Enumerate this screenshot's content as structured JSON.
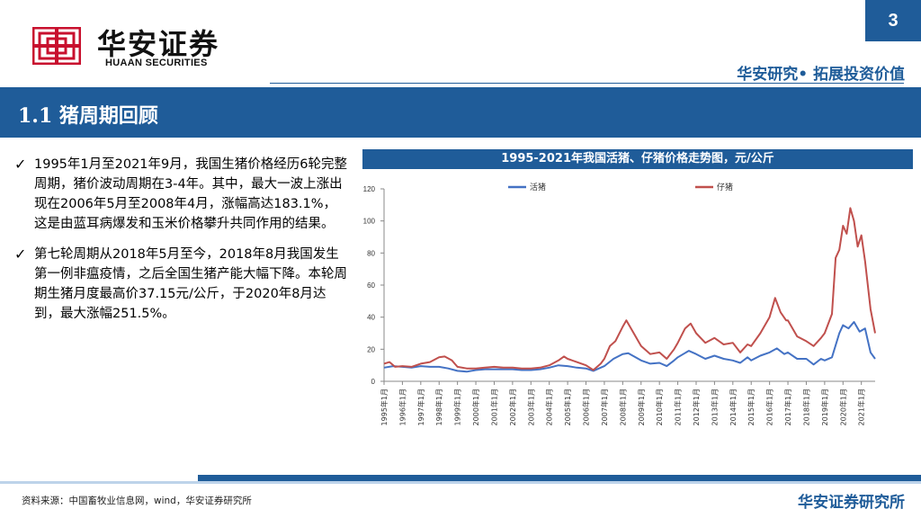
{
  "header": {
    "logo_icon": "huaan-logo-icon",
    "brand_cn": "华安证券",
    "brand_en": "HUAAN SECURITIES",
    "page_number": "3",
    "slogan": "华安研究• 拓展投资价值",
    "accent_color": "#1f5c99",
    "logo_color": "#c8102e"
  },
  "section": {
    "title": "1.1 猪周期回顾"
  },
  "bullets": [
    {
      "icon": "check-icon",
      "text": "1995年1月至2021年9月，我国生猪价格经历6轮完整周期，猪价波动周期在3-4年。其中，最大一波上涨出现在2006年5月至2008年4月，涨幅高达183.1%，这是由蓝耳病爆发和玉米价格攀升共同作用的结果。"
    },
    {
      "icon": "check-icon",
      "text": "第七轮周期从2018年5月至今，2018年8月我国发生第一例非瘟疫情，之后全国生猪产能大幅下降。本轮周期生猪月度最高价37.15元/公斤，于2020年8月达到，最大涨幅251.5%。"
    }
  ],
  "chart_data": {
    "type": "line",
    "title": "1995-2021年我国活猪、仔猪价格走势图，元/公斤",
    "xlabel": "",
    "ylabel": "",
    "ylim": [
      0,
      120
    ],
    "yticks": [
      0,
      20,
      40,
      60,
      80,
      100,
      120
    ],
    "x_tick_labels": [
      "1995年1月",
      "1996年1月",
      "1997年1月",
      "1998年1月",
      "1999年1月",
      "2000年1月",
      "2001年1月",
      "2002年1月",
      "2003年1月",
      "2004年1月",
      "2005年1月",
      "2006年1月",
      "2007年1月",
      "2008年1月",
      "2009年1月",
      "2010年1月",
      "2011年1月",
      "2012年1月",
      "2013年1月",
      "2014年1月",
      "2015年1月",
      "2016年1月",
      "2017年1月",
      "2018年1月",
      "2019年1月",
      "2020年1月",
      "2021年1月"
    ],
    "legend_position": "top",
    "x_start_year": 1995,
    "x_end_year": 2021.75,
    "series": [
      {
        "name": "活猪",
        "color": "#4472c4",
        "points": [
          [
            1995.0,
            8.5
          ],
          [
            1995.5,
            9.5
          ],
          [
            1996.0,
            9
          ],
          [
            1996.5,
            8.5
          ],
          [
            1997.0,
            9.5
          ],
          [
            1997.5,
            9
          ],
          [
            1998.0,
            9
          ],
          [
            1998.5,
            8
          ],
          [
            1999.0,
            6.5
          ],
          [
            1999.5,
            6
          ],
          [
            2000.0,
            7
          ],
          [
            2000.5,
            7.5
          ],
          [
            2001.0,
            7.5
          ],
          [
            2001.5,
            7.5
          ],
          [
            2002.0,
            7.5
          ],
          [
            2002.5,
            7
          ],
          [
            2003.0,
            7
          ],
          [
            2003.5,
            7.5
          ],
          [
            2004.0,
            8.5
          ],
          [
            2004.5,
            10
          ],
          [
            2005.0,
            9.5
          ],
          [
            2005.5,
            8.5
          ],
          [
            2006.0,
            8
          ],
          [
            2006.4,
            6.5
          ],
          [
            2006.8,
            8.5
          ],
          [
            2007.0,
            9.5
          ],
          [
            2007.5,
            14
          ],
          [
            2008.0,
            17
          ],
          [
            2008.3,
            17.5
          ],
          [
            2008.7,
            15
          ],
          [
            2009.0,
            13
          ],
          [
            2009.5,
            11
          ],
          [
            2010.0,
            11.5
          ],
          [
            2010.4,
            9.5
          ],
          [
            2010.8,
            13
          ],
          [
            2011.0,
            15
          ],
          [
            2011.6,
            19
          ],
          [
            2012.0,
            17
          ],
          [
            2012.5,
            14
          ],
          [
            2013.0,
            16
          ],
          [
            2013.5,
            14
          ],
          [
            2014.0,
            13
          ],
          [
            2014.4,
            11.5
          ],
          [
            2014.8,
            15
          ],
          [
            2015.0,
            13
          ],
          [
            2015.5,
            16
          ],
          [
            2016.0,
            18
          ],
          [
            2016.4,
            20.5
          ],
          [
            2016.8,
            17
          ],
          [
            2017.0,
            18
          ],
          [
            2017.5,
            14
          ],
          [
            2018.0,
            14
          ],
          [
            2018.4,
            10.5
          ],
          [
            2018.8,
            14
          ],
          [
            2019.0,
            13
          ],
          [
            2019.4,
            15
          ],
          [
            2019.8,
            30
          ],
          [
            2020.0,
            35
          ],
          [
            2020.3,
            33
          ],
          [
            2020.6,
            37
          ],
          [
            2020.9,
            31
          ],
          [
            2021.2,
            33
          ],
          [
            2021.5,
            18
          ],
          [
            2021.75,
            14
          ]
        ]
      },
      {
        "name": "仔猪",
        "color": "#c0504d",
        "points": [
          [
            1995.0,
            11
          ],
          [
            1995.3,
            12
          ],
          [
            1995.6,
            9
          ],
          [
            1996.0,
            9.5
          ],
          [
            1996.5,
            9
          ],
          [
            1997.0,
            11
          ],
          [
            1997.5,
            12
          ],
          [
            1998.0,
            15
          ],
          [
            1998.3,
            15.5
          ],
          [
            1998.7,
            13
          ],
          [
            1999.0,
            9
          ],
          [
            1999.5,
            8
          ],
          [
            2000.0,
            8
          ],
          [
            2000.5,
            8.5
          ],
          [
            2001.0,
            9
          ],
          [
            2001.5,
            8.5
          ],
          [
            2002.0,
            8.5
          ],
          [
            2002.5,
            8
          ],
          [
            2003.0,
            8
          ],
          [
            2003.5,
            8.5
          ],
          [
            2004.0,
            10
          ],
          [
            2004.5,
            13
          ],
          [
            2004.8,
            15.5
          ],
          [
            2005.0,
            14
          ],
          [
            2005.5,
            12
          ],
          [
            2006.0,
            10
          ],
          [
            2006.4,
            7
          ],
          [
            2006.8,
            11
          ],
          [
            2007.0,
            14
          ],
          [
            2007.3,
            22
          ],
          [
            2007.6,
            25
          ],
          [
            2008.0,
            34
          ],
          [
            2008.2,
            38
          ],
          [
            2008.6,
            30
          ],
          [
            2009.0,
            22
          ],
          [
            2009.5,
            17
          ],
          [
            2010.0,
            18
          ],
          [
            2010.4,
            14
          ],
          [
            2010.8,
            20
          ],
          [
            2011.0,
            24
          ],
          [
            2011.4,
            33
          ],
          [
            2011.7,
            36
          ],
          [
            2012.0,
            30
          ],
          [
            2012.5,
            24
          ],
          [
            2013.0,
            27
          ],
          [
            2013.5,
            23
          ],
          [
            2014.0,
            24
          ],
          [
            2014.4,
            18
          ],
          [
            2014.8,
            23
          ],
          [
            2015.0,
            22
          ],
          [
            2015.5,
            30
          ],
          [
            2016.0,
            40
          ],
          [
            2016.3,
            52
          ],
          [
            2016.6,
            43
          ],
          [
            2016.9,
            38
          ],
          [
            2017.0,
            38
          ],
          [
            2017.5,
            28
          ],
          [
            2018.0,
            25
          ],
          [
            2018.4,
            22
          ],
          [
            2018.8,
            27
          ],
          [
            2019.0,
            30
          ],
          [
            2019.4,
            42
          ],
          [
            2019.6,
            77
          ],
          [
            2019.8,
            82
          ],
          [
            2020.0,
            97
          ],
          [
            2020.2,
            92
          ],
          [
            2020.4,
            108
          ],
          [
            2020.6,
            100
          ],
          [
            2020.8,
            84
          ],
          [
            2021.0,
            91
          ],
          [
            2021.2,
            75
          ],
          [
            2021.5,
            45
          ],
          [
            2021.75,
            30
          ]
        ]
      }
    ]
  },
  "footer": {
    "source": "资料来源：中国畜牧业信息网，wind，华安证券研究所",
    "brand": "华安证券研究所"
  }
}
